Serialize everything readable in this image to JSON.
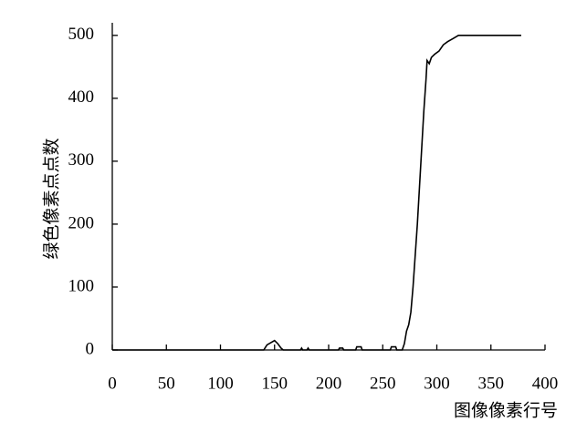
{
  "chart_data": {
    "type": "line",
    "x_label": "图像像素行号",
    "y_label": "绿色像素点点数",
    "x": [
      0,
      140,
      143,
      147,
      150,
      153,
      156,
      158,
      174,
      175,
      176,
      180,
      181,
      182,
      209,
      210,
      213,
      214,
      225,
      226,
      230,
      231,
      257,
      258,
      262,
      263,
      268,
      270,
      272,
      274,
      276,
      278,
      280,
      282,
      284,
      286,
      288,
      290,
      291,
      293,
      295,
      298,
      302,
      306,
      310,
      315,
      320,
      378
    ],
    "series": [
      {
        "color": "#000000",
        "values": [
          0,
          0,
          8,
          12,
          15,
          10,
          3,
          0,
          0,
          3,
          0,
          0,
          3,
          0,
          0,
          3,
          3,
          0,
          0,
          5,
          5,
          0,
          0,
          5,
          5,
          0,
          0,
          10,
          30,
          40,
          60,
          100,
          150,
          200,
          260,
          320,
          380,
          430,
          460,
          455,
          465,
          470,
          475,
          485,
          490,
          495,
          500,
          500
        ]
      }
    ],
    "xlim": [
      0,
      400
    ],
    "xticks": [
      0,
      50,
      100,
      150,
      200,
      250,
      300,
      350,
      400
    ],
    "ylim": [
      0,
      520
    ],
    "yticks": [
      0,
      100,
      200,
      300,
      400,
      500
    ]
  }
}
